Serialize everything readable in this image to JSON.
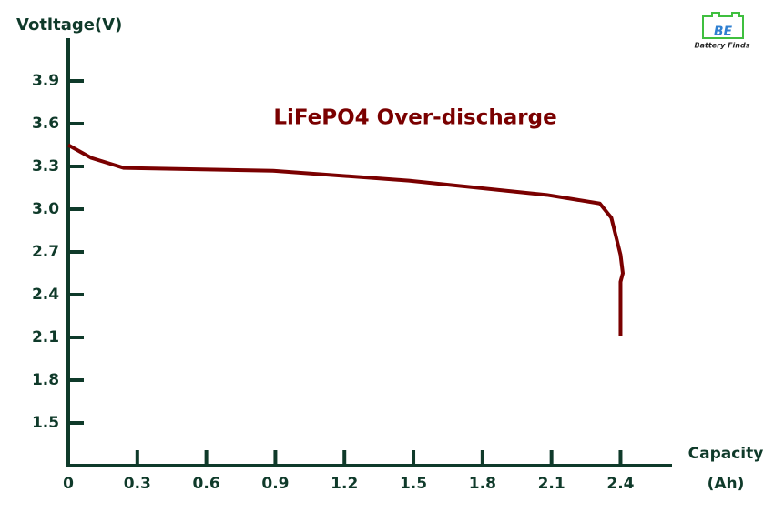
{
  "chart_data": {
    "type": "line",
    "title": "LiFePO4 Over-discharge",
    "y_label": "Votltage(V)",
    "x_label": "Capacity",
    "x_unit": "(Ah)",
    "logo": {
      "mark": "BE",
      "text": "Battery Finds"
    },
    "axis_color": "#0f3a2a",
    "series": [
      {
        "color": "#7a0000",
        "x": [
          0,
          0.1,
          0.24,
          0.89,
          1.48,
          2.08,
          2.31,
          2.36,
          2.4,
          2.41,
          2.4,
          2.4
        ],
        "values": [
          3.45,
          3.36,
          3.29,
          3.27,
          3.2,
          3.1,
          3.04,
          2.94,
          2.68,
          2.55,
          2.49,
          2.11
        ]
      }
    ],
    "xlim": [
      0,
      2.6
    ],
    "ylim": [
      1.2,
      4.2
    ],
    "xticks": [
      0,
      0.3,
      0.6,
      0.9,
      1.2,
      1.5,
      1.8,
      2.1,
      2.4
    ],
    "yticks": [
      1.5,
      1.8,
      2.1,
      2.4,
      2.7,
      {
        "value": 3,
        "label": "3.0"
      },
      3.3,
      3.6,
      3.9
    ]
  }
}
